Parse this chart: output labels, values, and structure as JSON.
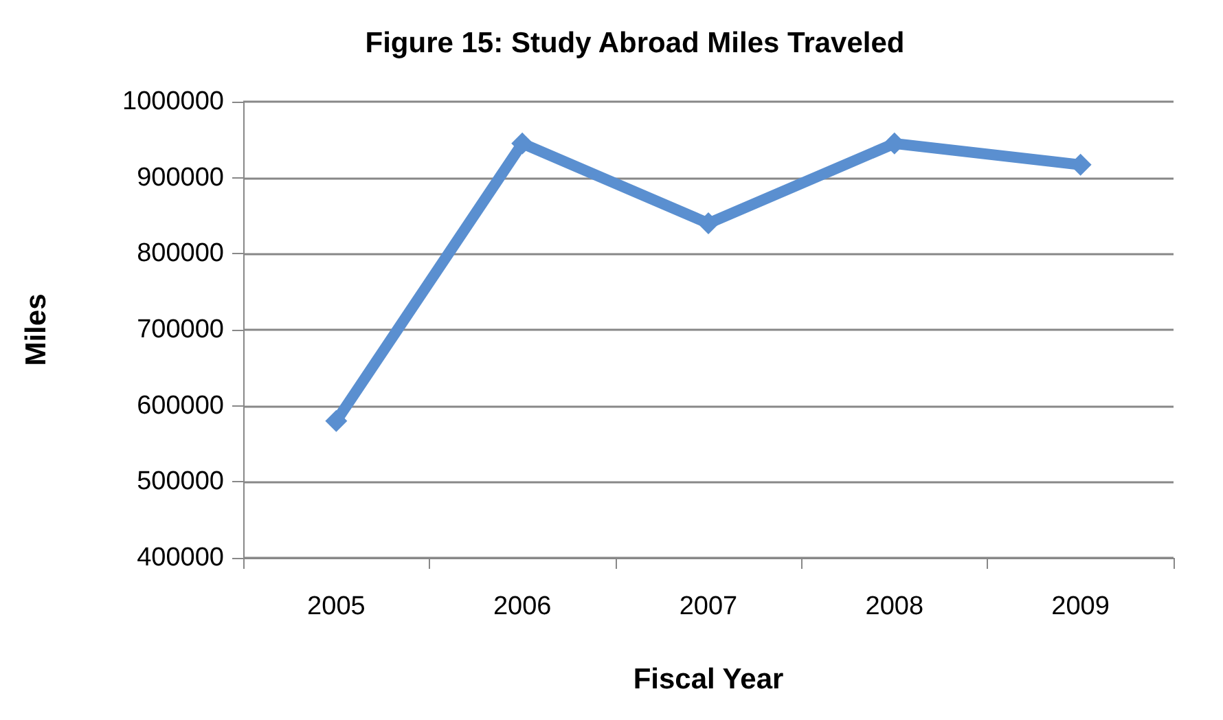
{
  "chart_data": {
    "type": "line",
    "title": "Figure 15: Study Abroad Miles Traveled",
    "xlabel": "Fiscal Year",
    "ylabel": "Miles",
    "categories": [
      "2005",
      "2006",
      "2007",
      "2008",
      "2009"
    ],
    "series": [
      {
        "color": "#5a8fd0",
        "values": [
          580000,
          945000,
          840000,
          945000,
          917000
        ]
      }
    ],
    "ylim": [
      400000,
      1000000
    ],
    "yticks": [
      400000,
      500000,
      600000,
      700000,
      800000,
      900000,
      1000000
    ],
    "grid": "y",
    "marker": "diamond",
    "line_style": "solid"
  }
}
